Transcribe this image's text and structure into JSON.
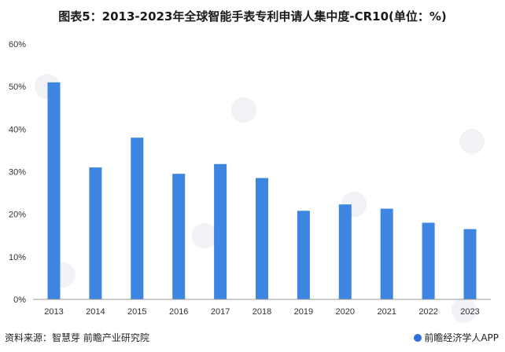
{
  "title": "图表5：2013-2023年全球智能手表专利申请人集中度-CR10(单位：%)",
  "footer": {
    "source": "资料来源：智慧芽 前瞻产业研究院",
    "brand": "前瞻经济学人APP"
  },
  "colors": {
    "bar": "#3d85e0",
    "axis": "#999999",
    "grid": "#d9d9d9"
  },
  "chart_data": {
    "type": "bar",
    "title": "图表5：2013-2023年全球智能手表专利申请人集中度-CR10(单位：%)",
    "xlabel": "",
    "ylabel": "",
    "categories": [
      "2013",
      "2014",
      "2015",
      "2016",
      "2017",
      "2018",
      "2019",
      "2020",
      "2021",
      "2022",
      "2023"
    ],
    "values": [
      51.0,
      31.0,
      38.0,
      29.5,
      31.8,
      28.5,
      20.8,
      22.3,
      21.3,
      18.0,
      16.5
    ],
    "ylim": [
      0,
      60
    ],
    "yticks": [
      0,
      10,
      20,
      30,
      40,
      50,
      60
    ],
    "ytick_labels": [
      "0%",
      "10%",
      "20%",
      "30%",
      "40%",
      "50%",
      "60%"
    ],
    "grid": false,
    "legend": "none"
  }
}
